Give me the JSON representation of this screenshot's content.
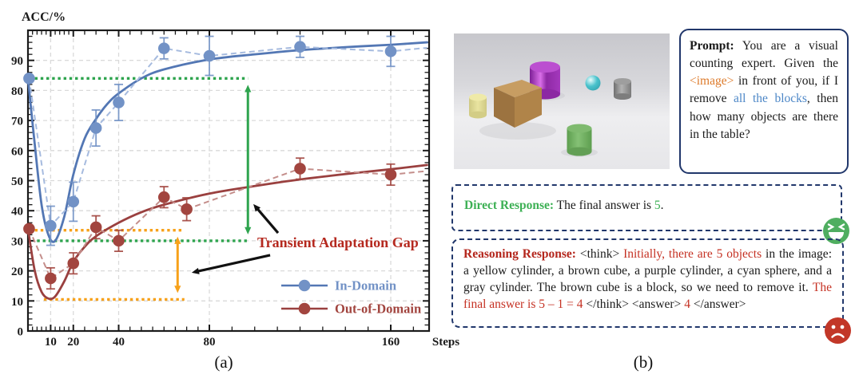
{
  "figure": {
    "caption_a": "(a)",
    "caption_b": "(b)"
  },
  "chart_data": {
    "type": "line",
    "title": "",
    "ylabel": "ACC/%",
    "xlabel": "Steps",
    "xlim": [
      0,
      177
    ],
    "ylim": [
      0,
      100
    ],
    "x_ticks": [
      10,
      20,
      40,
      80,
      160
    ],
    "y_ticks": [
      0,
      10,
      20,
      30,
      40,
      50,
      60,
      70,
      80,
      90
    ],
    "grid": true,
    "legend_position": "lower right",
    "series": [
      {
        "name": "In-Domain",
        "color": "#7292c6",
        "line_color": "#5377b4",
        "dash_color": "#a6bbdf",
        "x": [
          0.5,
          10,
          20,
          30,
          40,
          60,
          80,
          120,
          160
        ],
        "y": [
          84,
          35,
          43,
          67.5,
          76,
          94,
          91.5,
          94.5,
          93
        ],
        "yerr": [
          0,
          6.5,
          6.5,
          6,
          6,
          3.5,
          6.5,
          3.5,
          5
        ],
        "dash_ext": [
          176,
          94.2
        ],
        "trend": [
          [
            0,
            84
          ],
          [
            3,
            62
          ],
          [
            6,
            42
          ],
          [
            9,
            32
          ],
          [
            12,
            30
          ],
          [
            16,
            38
          ],
          [
            20,
            52
          ],
          [
            25,
            64
          ],
          [
            30,
            70.5
          ],
          [
            35,
            75.5
          ],
          [
            40,
            79
          ],
          [
            50,
            84
          ],
          [
            60,
            87
          ],
          [
            80,
            90.3
          ],
          [
            100,
            92
          ],
          [
            120,
            93.4
          ],
          [
            140,
            94.4
          ],
          [
            160,
            95.2
          ],
          [
            176,
            96
          ]
        ]
      },
      {
        "name": "Out-of-Domain",
        "color": "#a2453f",
        "line_color": "#9a403f",
        "dash_color": "#c48e8b",
        "x": [
          0.5,
          10,
          20,
          30,
          40,
          60,
          70,
          120,
          160
        ],
        "y": [
          34,
          17.5,
          22.5,
          34.5,
          30,
          44.5,
          40.5,
          54,
          52
        ],
        "yerr": [
          0,
          3.5,
          3.5,
          3.8,
          3.5,
          3.5,
          3.8,
          3.5,
          3.5
        ],
        "dash_ext": [
          176,
          53.2
        ],
        "trend": [
          [
            0,
            34
          ],
          [
            3,
            20
          ],
          [
            6,
            13
          ],
          [
            9,
            10.8
          ],
          [
            12,
            11.5
          ],
          [
            16,
            16.5
          ],
          [
            20,
            23
          ],
          [
            25,
            28
          ],
          [
            30,
            31.5
          ],
          [
            40,
            36
          ],
          [
            50,
            39.5
          ],
          [
            60,
            42
          ],
          [
            80,
            45.7
          ],
          [
            100,
            48.2
          ],
          [
            120,
            50.4
          ],
          [
            140,
            52.2
          ],
          [
            160,
            53.8
          ],
          [
            176,
            55.2
          ]
        ]
      }
    ],
    "annotations": {
      "label": "Transient Adaptation Gap",
      "label_color": "#b5291f",
      "in_domain_gap": {
        "color": "#2ea44e",
        "from": 84,
        "to": 30,
        "arrow_x": 97,
        "dotted_x_start": 0.5,
        "bottom_x_start": 4,
        "dotted_x_end": 97
      },
      "out_domain_gap": {
        "color": "#f7a11a",
        "from": 33.5,
        "to": 10.5,
        "arrow_x": 66,
        "dotted_x_start": 0.5,
        "bottom_x_start": 7,
        "dotted_x_end": 69
      },
      "pointer_arrows": [
        {
          "from": [
            110.3,
            32.6
          ],
          "to": [
            99.4,
            42.2
          ]
        },
        {
          "from": [
            106.8,
            25.2
          ],
          "to": [
            72.2,
            19.4
          ]
        }
      ]
    }
  },
  "scene": {
    "objects": [
      {
        "name": "yellow cylinder",
        "color": "#ddd88e"
      },
      {
        "name": "brown cube",
        "color": "#b08449"
      },
      {
        "name": "purple metallic cylinder",
        "color": "#a238bb"
      },
      {
        "name": "cyan metallic sphere",
        "color": "#49c2cc"
      },
      {
        "name": "gray cylinder",
        "color": "#8a8a8a"
      },
      {
        "name": "green cylinder",
        "color": "#6fae5f"
      }
    ]
  },
  "prompt_box": {
    "segments": [
      {
        "t": "Prompt:",
        "b": 1
      },
      {
        "t": " You are a visual counting expert. Given the "
      },
      {
        "t": "<image>",
        "c": "#dd7a2a"
      },
      {
        "t": " in front of you, if I remove "
      },
      {
        "t": "all the blocks",
        "c": "#4d87c7"
      },
      {
        "t": ", then how many objects are there in the table?"
      }
    ]
  },
  "direct_box": {
    "emoji": "happy",
    "segments": [
      {
        "t": "Direct Response:",
        "b": 1,
        "c": "#3cb054"
      },
      {
        "t": " The final answer is "
      },
      {
        "t": "5",
        "c": "#3cb054"
      },
      {
        "t": "."
      }
    ]
  },
  "reasoning_box": {
    "emoji": "sad",
    "segments": [
      {
        "t": "Reasoning Response:",
        "b": 1,
        "c": "#b4261c"
      },
      {
        "t": " <think> "
      },
      {
        "t": "Initially, there are 5 objects",
        "c": "#c53123"
      },
      {
        "t": " in the image: a yellow cylinder, a brown cube, a purple cylinder, a cyan sphere, and a gray cylinder. The brown cube is a block, so we need to remove it. "
      },
      {
        "t": "The final answer is 5 – 1 = 4",
        "c": "#c53123"
      },
      {
        "t": " </think> <answer> "
      },
      {
        "t": "4",
        "c": "#c53123"
      },
      {
        "t": " </answer>"
      }
    ]
  }
}
